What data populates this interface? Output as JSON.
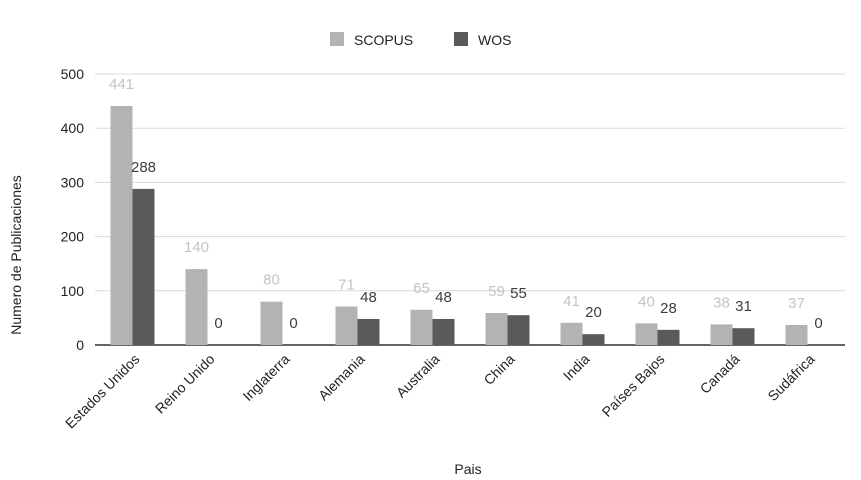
{
  "chart_data": {
    "type": "bar",
    "title": "",
    "xlabel": "Pais",
    "ylabel": "Numero de Publicaciones",
    "ylim": [
      0,
      500
    ],
    "yticks": [
      0,
      100,
      200,
      300,
      400,
      500
    ],
    "grid": true,
    "legend_position": "top-center",
    "categories": [
      "Estados Unidos",
      "Reino Unido",
      "Inglaterra",
      "Alemania",
      "Australia",
      "China",
      "India",
      "Países Bajos",
      "Canadá",
      "Sudáfrica"
    ],
    "series": [
      {
        "name": "SCOPUS",
        "color": "#b3b3b3",
        "label_color": "#c4c4c4",
        "values": [
          441,
          140,
          80,
          71,
          65,
          59,
          41,
          40,
          38,
          37
        ]
      },
      {
        "name": "WOS",
        "color": "#5a5a5a",
        "label_color": "#3e3e3e",
        "values": [
          288,
          0,
          0,
          48,
          48,
          55,
          20,
          28,
          31,
          0
        ]
      }
    ]
  }
}
